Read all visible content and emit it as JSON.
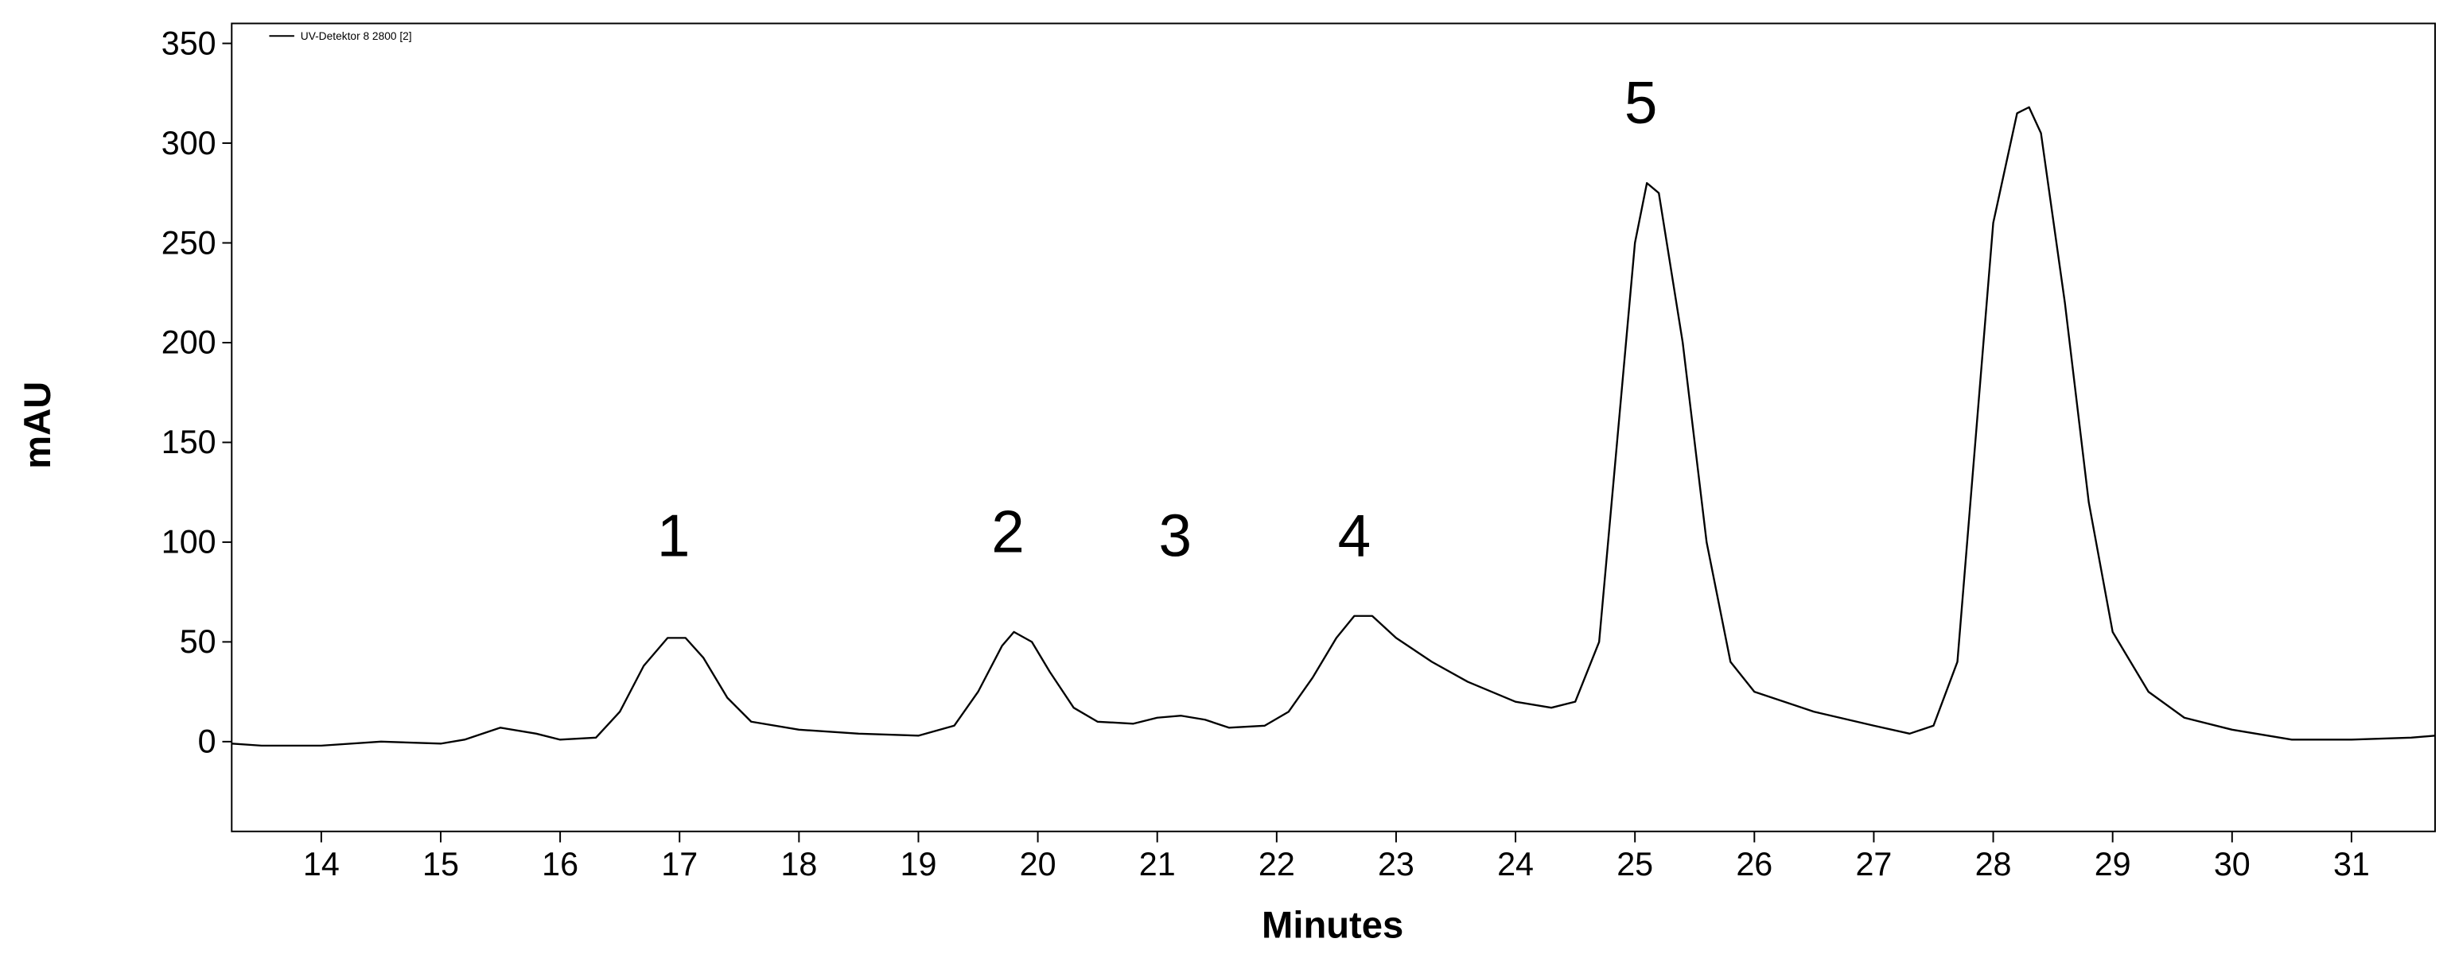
{
  "chart_data": {
    "type": "line",
    "x_label": "Minutes",
    "y_label": "mAU",
    "xlim": [
      13.25,
      31.7
    ],
    "ylim": [
      -45,
      360
    ],
    "xticks": [
      14,
      15,
      16,
      17,
      18,
      19,
      20,
      21,
      22,
      23,
      24,
      25,
      26,
      27,
      28,
      29,
      30,
      31
    ],
    "yticks": [
      0,
      50,
      100,
      150,
      200,
      250,
      300,
      350
    ],
    "grid": false,
    "legend": "top-left",
    "series": [
      {
        "name": "UV-Detektor 8 2800 [2]",
        "color": "#000000",
        "x": [
          13.25,
          13.5,
          14,
          14.5,
          15,
          15.2,
          15.5,
          15.8,
          16,
          16.3,
          16.5,
          16.7,
          16.9,
          17.05,
          17.2,
          17.4,
          17.6,
          18,
          18.5,
          19,
          19.3,
          19.5,
          19.7,
          19.8,
          19.95,
          20.1,
          20.3,
          20.5,
          20.8,
          21,
          21.2,
          21.4,
          21.6,
          21.9,
          22.1,
          22.3,
          22.5,
          22.65,
          22.8,
          23,
          23.3,
          23.6,
          24,
          24.3,
          24.5,
          24.7,
          24.85,
          25,
          25.1,
          25.2,
          25.4,
          25.6,
          25.8,
          26,
          26.5,
          27,
          27.3,
          27.5,
          27.7,
          27.85,
          28,
          28.2,
          28.3,
          28.4,
          28.6,
          28.8,
          29,
          29.3,
          29.6,
          30,
          30.5,
          31,
          31.5,
          31.7
        ],
        "values": [
          -1,
          -2,
          -2,
          0,
          -1,
          1,
          7,
          4,
          1,
          2,
          15,
          38,
          52,
          52,
          42,
          22,
          10,
          6,
          4,
          3,
          8,
          25,
          48,
          55,
          50,
          35,
          17,
          10,
          9,
          12,
          13,
          11,
          7,
          8,
          15,
          32,
          52,
          63,
          63,
          52,
          40,
          30,
          20,
          17,
          20,
          50,
          150,
          250,
          280,
          275,
          200,
          100,
          40,
          25,
          15,
          8,
          4,
          8,
          40,
          150,
          260,
          315,
          318,
          305,
          220,
          120,
          55,
          25,
          12,
          6,
          1,
          1,
          2,
          3
        ]
      }
    ],
    "annotations": [
      {
        "text": "1",
        "x": 16.95,
        "y": 93
      },
      {
        "text": "2",
        "x": 19.75,
        "y": 95
      },
      {
        "text": "3",
        "x": 21.15,
        "y": 93
      },
      {
        "text": "4",
        "x": 22.65,
        "y": 93
      },
      {
        "text": "5",
        "x": 25.05,
        "y": 310
      }
    ]
  }
}
